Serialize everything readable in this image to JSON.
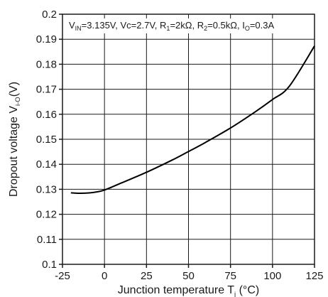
{
  "chart_data": {
    "type": "line",
    "xlabel": "Junction temperature Tj (°C)",
    "xlabel_main": "Junction temperature T",
    "xlabel_sub": "j",
    "xlabel_unit": " (°C)",
    "ylabel": "Dropout voltage Vi-o(V)",
    "ylabel_main": "Dropout voltage V",
    "ylabel_sub": "i-O",
    "ylabel_unit": "(V)",
    "xlim": [
      -25,
      125
    ],
    "ylim": [
      0.1,
      0.2
    ],
    "x_ticks": [
      "-25",
      "0",
      "25",
      "50",
      "75",
      "100",
      "125"
    ],
    "y_ticks": [
      "0.1",
      "0.11",
      "0.12",
      "0.13",
      "0.14",
      "0.15",
      "0.16",
      "0.17",
      "0.18",
      "0.19",
      "0.2"
    ],
    "grid": true,
    "annotation": "VIN=3.135V, Vc=2.7V, R1=2kΩ, R2=0.5kΩ, Io=0.3A",
    "annotation_parts": [
      {
        "t": "V",
        "sub": false
      },
      {
        "t": "IN",
        "sub": true
      },
      {
        "t": "=3.135V, Vc=2.7V, R",
        "sub": false
      },
      {
        "t": "1",
        "sub": true
      },
      {
        "t": "=2kΩ, R",
        "sub": false
      },
      {
        "t": "2",
        "sub": true
      },
      {
        "t": "=0.5kΩ, I",
        "sub": false
      },
      {
        "t": "O",
        "sub": true
      },
      {
        "t": "=0.3A",
        "sub": false
      }
    ],
    "series": [
      {
        "x": [
          -20,
          -15,
          -10,
          -5,
          0,
          10,
          25,
          40,
          50,
          60,
          75,
          90,
          100,
          110,
          125
        ],
        "y": [
          0.1286,
          0.1284,
          0.1285,
          0.1289,
          0.1297,
          0.1325,
          0.1368,
          0.1416,
          0.1451,
          0.1487,
          0.1545,
          0.1611,
          0.1659,
          0.1712,
          0.1873
        ]
      }
    ]
  }
}
